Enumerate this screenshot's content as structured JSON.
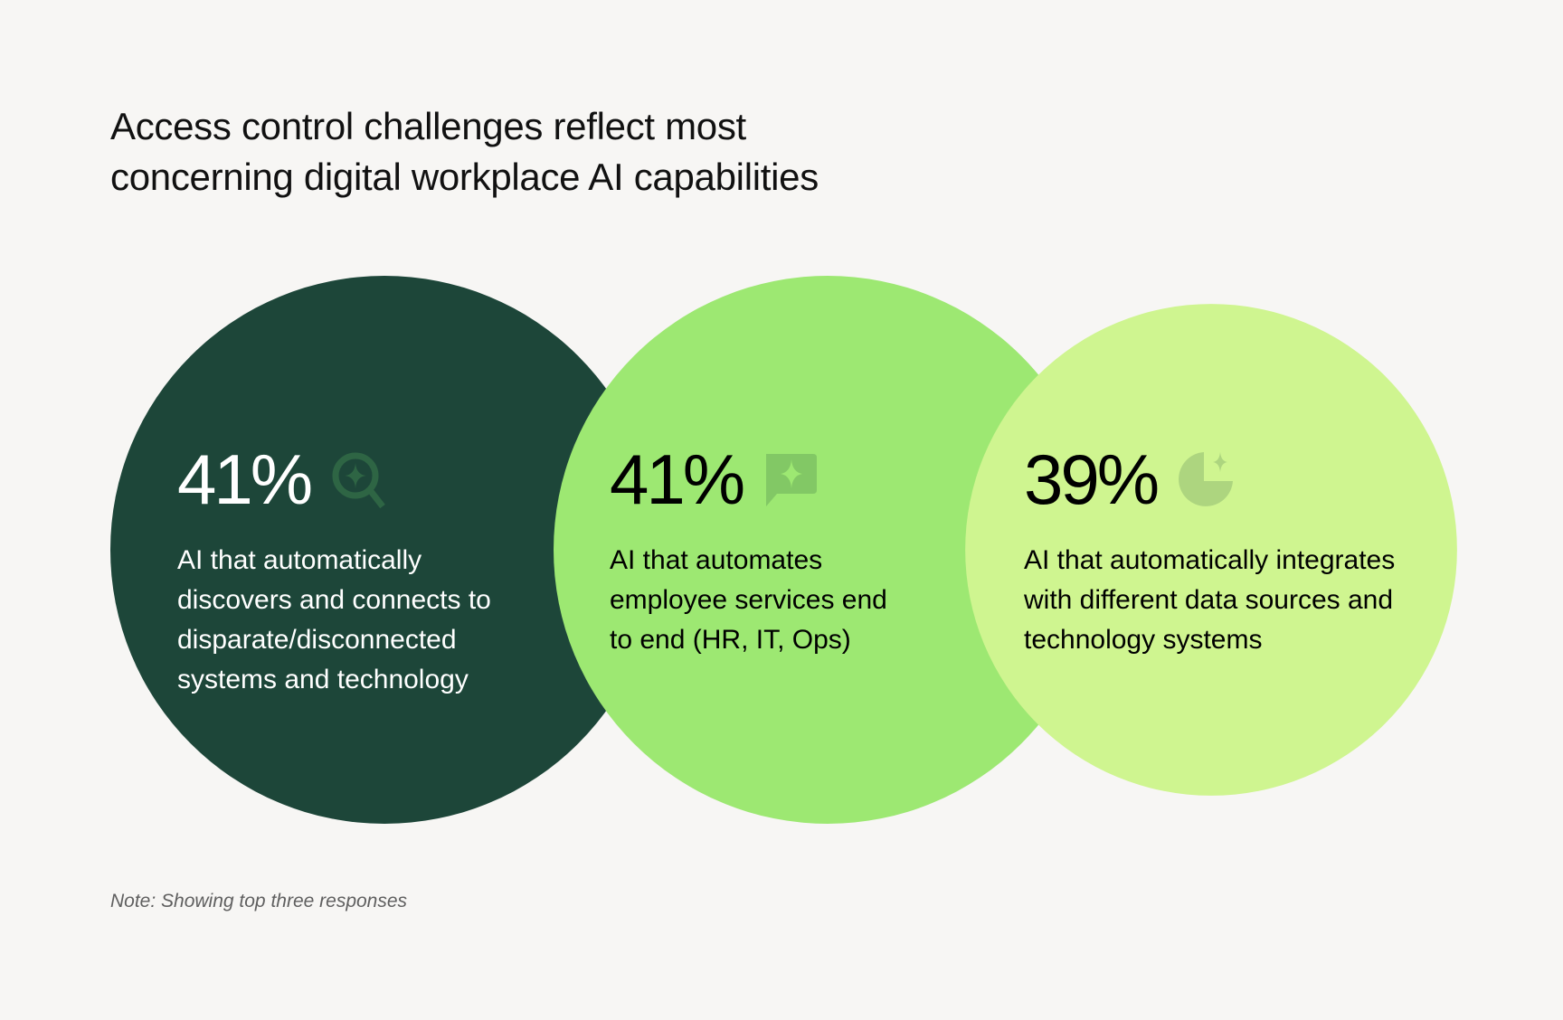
{
  "title_lines": [
    "Access control challenges reflect most",
    "concerning digital workplace AI capabilities"
  ],
  "note": "Note: Showing top three responses",
  "colors": {
    "background": "#f7f6f4",
    "dark_green": "#1d4639",
    "mid_green": "#9de872",
    "light_green": "#cff590"
  },
  "chart_data": {
    "type": "bubble",
    "title": "Access control challenges reflect most concerning digital workplace AI capabilities",
    "items": [
      {
        "value": 41,
        "label": "41%",
        "icon": "magnifier-sparkle-icon",
        "desc_lines": [
          "AI that automatically",
          "discovers and connects to",
          "disparate/disconnected",
          "systems and technology"
        ],
        "color": "#1d4639",
        "text_color": "#ffffff",
        "icon_color": "#2e6544"
      },
      {
        "value": 41,
        "label": "41%",
        "icon": "chat-sparkle-icon",
        "desc_lines": [
          "AI that automates",
          "employee services end",
          "to end (HR, IT, Ops)"
        ],
        "color": "#9de872",
        "text_color": "#000000",
        "icon_color": "#82c865"
      },
      {
        "value": 39,
        "label": "39%",
        "icon": "pie-sparkle-icon",
        "desc_lines": [
          "AI that automatically integrates",
          "with different data sources and",
          "technology systems"
        ],
        "color": "#cff590",
        "text_color": "#000000",
        "icon_color": "#add57f"
      }
    ]
  }
}
